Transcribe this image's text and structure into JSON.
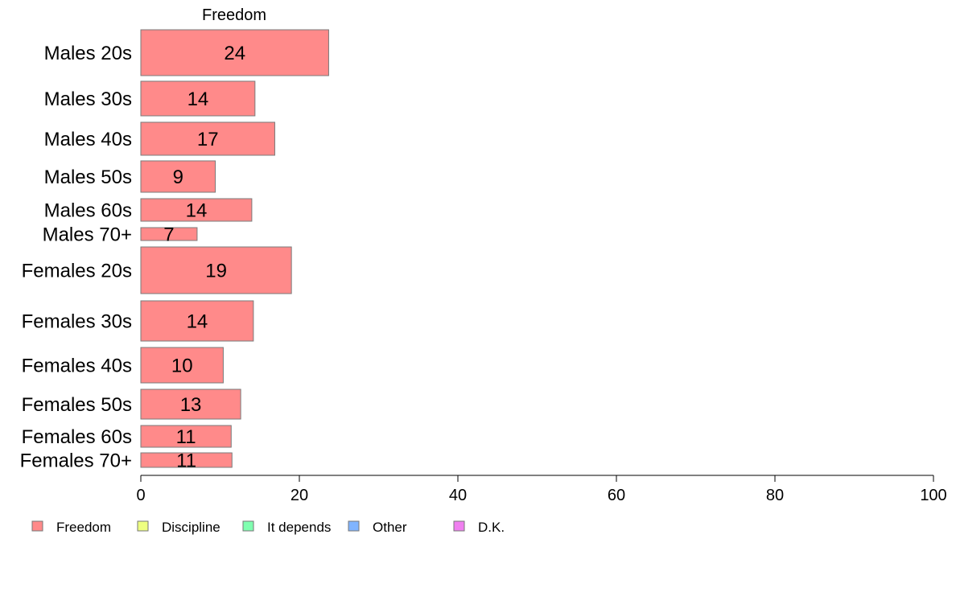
{
  "chart_data": {
    "type": "bar",
    "orientation": "horizontal",
    "stacked": true,
    "column_title": "Freedom",
    "categories": [
      "Males 20s",
      "Males 30s",
      "Males 40s",
      "Males 50s",
      "Males 60s",
      "Males 70+",
      "Females 20s",
      "Females 30s",
      "Females 40s",
      "Females 50s",
      "Females 60s",
      "Females 70+"
    ],
    "series": [
      {
        "name": "Freedom",
        "color": "#ff8a8a",
        "values": [
          23.7,
          14.4,
          16.9,
          9.4,
          14.0,
          7.1,
          19.0,
          14.2,
          10.4,
          12.6,
          11.4,
          11.5
        ],
        "labels": [
          "24",
          "14",
          "17",
          "9",
          "14",
          "7",
          "19",
          "14",
          "10",
          "13",
          "11",
          "11"
        ]
      }
    ],
    "legend": [
      {
        "name": "Freedom",
        "color": "#ff8a8a"
      },
      {
        "name": "Discipline",
        "color": "#eeff80"
      },
      {
        "name": "It depends",
        "color": "#80ffb0"
      },
      {
        "name": "Other",
        "color": "#80b4ff"
      },
      {
        "name": "D.K.",
        "color": "#f07ff0"
      }
    ],
    "legend_position": "bottom-left",
    "xlim": [
      0,
      100
    ],
    "xticks": [
      0,
      20,
      40,
      60,
      80,
      100
    ],
    "grid": false
  }
}
